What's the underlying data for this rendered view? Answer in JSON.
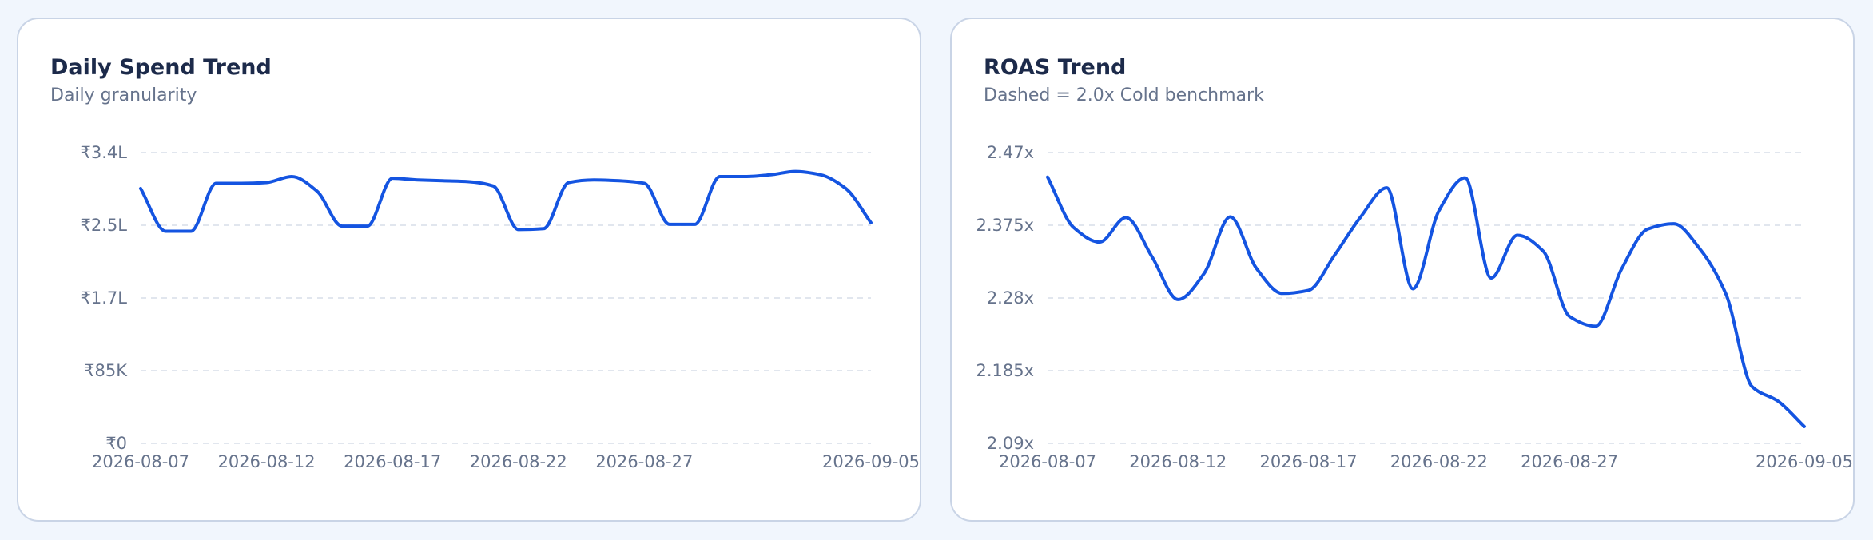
{
  "colors": {
    "line": "#1454e1",
    "background": "#f1f6fd",
    "card": "#ffffff"
  },
  "chart_data": [
    {
      "type": "line",
      "title": "Daily Spend Trend",
      "subtitle": "Daily granularity",
      "grid": true,
      "y_ticks": [
        {
          "value": 0,
          "label": "₹0"
        },
        {
          "value": 85000,
          "label": "₹85K"
        },
        {
          "value": 170000,
          "label": "₹1.7L"
        },
        {
          "value": 255000,
          "label": "₹2.5L"
        },
        {
          "value": 340000,
          "label": "₹3.4L"
        }
      ],
      "ylim": [
        0,
        340000
      ],
      "x_tick_labels": [
        "2026-08-07",
        "2026-08-12",
        "2026-08-17",
        "2026-08-22",
        "2026-08-27",
        "2026-09-05"
      ],
      "x": [
        "2026-08-07",
        "2026-08-08",
        "2026-08-09",
        "2026-08-10",
        "2026-08-11",
        "2026-08-12",
        "2026-08-13",
        "2026-08-14",
        "2026-08-15",
        "2026-08-16",
        "2026-08-17",
        "2026-08-18",
        "2026-08-19",
        "2026-08-20",
        "2026-08-21",
        "2026-08-22",
        "2026-08-23",
        "2026-08-24",
        "2026-08-25",
        "2026-08-26",
        "2026-08-27",
        "2026-08-28",
        "2026-08-29",
        "2026-08-30",
        "2026-08-31",
        "2026-09-01",
        "2026-09-02",
        "2026-09-03",
        "2026-09-04",
        "2026-09-05"
      ],
      "series": [
        {
          "values": [
            298000,
            248000,
            248000,
            304000,
            304000,
            305000,
            312000,
            295000,
            254000,
            254000,
            310000,
            308000,
            307000,
            306000,
            301000,
            250000,
            251000,
            305000,
            308000,
            307000,
            304000,
            256000,
            256000,
            312000,
            312000,
            314000,
            318000,
            314000,
            298000,
            258000
          ]
        }
      ]
    },
    {
      "type": "line",
      "title": "ROAS Trend",
      "subtitle": "Dashed = 2.0x Cold benchmark",
      "grid": true,
      "y_ticks": [
        {
          "value": 2.09,
          "label": "2.09x"
        },
        {
          "value": 2.185,
          "label": "2.185x"
        },
        {
          "value": 2.28,
          "label": "2.28x"
        },
        {
          "value": 2.375,
          "label": "2.375x"
        },
        {
          "value": 2.47,
          "label": "2.47x"
        }
      ],
      "ylim": [
        2.09,
        2.47
      ],
      "x_tick_labels": [
        "2026-08-07",
        "2026-08-12",
        "2026-08-17",
        "2026-08-22",
        "2026-08-27",
        "2026-09-05"
      ],
      "x": [
        "2026-08-07",
        "2026-08-08",
        "2026-08-09",
        "2026-08-10",
        "2026-08-11",
        "2026-08-12",
        "2026-08-13",
        "2026-08-14",
        "2026-08-15",
        "2026-08-16",
        "2026-08-17",
        "2026-08-18",
        "2026-08-19",
        "2026-08-20",
        "2026-08-21",
        "2026-08-22",
        "2026-08-23",
        "2026-08-24",
        "2026-08-25",
        "2026-08-26",
        "2026-08-27",
        "2026-08-28",
        "2026-08-29",
        "2026-08-30",
        "2026-08-31",
        "2026-09-01",
        "2026-09-02",
        "2026-09-03",
        "2026-09-04",
        "2026-09-05"
      ],
      "series": [
        {
          "values": [
            2.438,
            2.372,
            2.353,
            2.385,
            2.334,
            2.278,
            2.312,
            2.386,
            2.319,
            2.286,
            2.29,
            2.336,
            2.386,
            2.424,
            2.292,
            2.394,
            2.437,
            2.306,
            2.362,
            2.341,
            2.256,
            2.243,
            2.318,
            2.37,
            2.377,
            2.344,
            2.285,
            2.164,
            2.145,
            2.112
          ]
        }
      ]
    }
  ]
}
